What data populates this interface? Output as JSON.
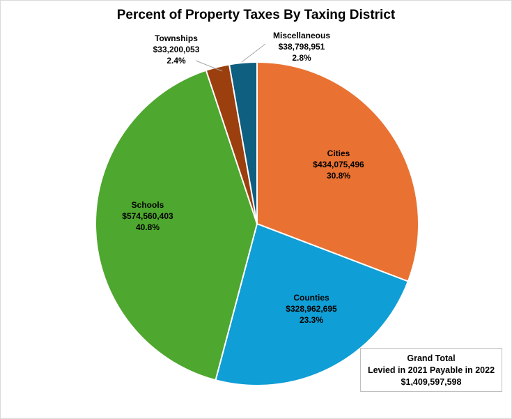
{
  "chart_data": {
    "type": "pie",
    "title": "Percent of Property Taxes By Taxing District",
    "start": "top",
    "direction": "clockwise",
    "slices": [
      {
        "label": "Cities",
        "value": 434075496,
        "value_label": "$434,075,496",
        "percent": 30.8,
        "percent_label": "30.8%",
        "color": "#E97132"
      },
      {
        "label": "Counties",
        "value": 328962695,
        "value_label": "$328,962,695",
        "percent": 23.3,
        "percent_label": "23.3%",
        "color": "#0F9ED5"
      },
      {
        "label": "Schools",
        "value": 574560403,
        "value_label": "$574,560,403",
        "percent": 40.8,
        "percent_label": "40.8%",
        "color": "#4EA72E"
      },
      {
        "label": "Townships",
        "value": 33200053,
        "value_label": "$33,200,053",
        "percent": 2.4,
        "percent_label": "2.4%",
        "color": "#9C3F0F"
      },
      {
        "label": "Miscellaneous",
        "value": 38798951,
        "value_label": "$38,798,951",
        "percent": 2.8,
        "percent_label": "2.8%",
        "color": "#0F5F80"
      }
    ],
    "legend": "none",
    "annotation": {
      "line1": "Grand Total",
      "line2": "Levied in 2021 Payable in 2022",
      "line3": "$1,409,597,598"
    }
  }
}
